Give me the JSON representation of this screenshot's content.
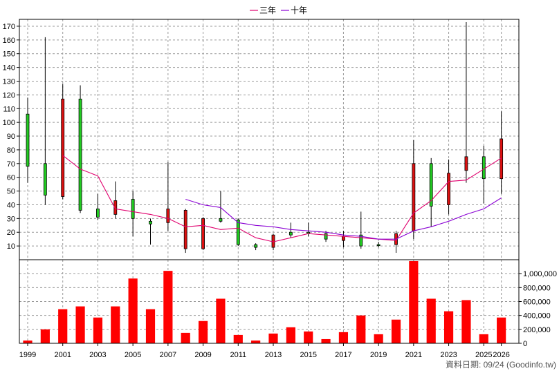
{
  "legend": [
    {
      "label": "三年",
      "color": "#e0006e"
    },
    {
      "label": "十年",
      "color": "#8a00d4"
    }
  ],
  "footer": "資料日期: 09/24  (Goodinfo.tw)",
  "colors": {
    "up": "#22cc22",
    "down": "#dd1111",
    "volume": "#ff0000",
    "wick": "#000000",
    "grid": "#999999"
  },
  "chart_data": [
    {
      "type": "candlestick",
      "title": "",
      "ylim": [
        0,
        175
      ],
      "y_ticks": [
        10,
        20,
        30,
        40,
        50,
        60,
        70,
        80,
        90,
        100,
        110,
        120,
        130,
        140,
        150,
        160,
        170
      ],
      "x": [
        "1999",
        "2000",
        "2001",
        "2002",
        "2003",
        "2004",
        "2005",
        "2006",
        "2007",
        "2008",
        "2009",
        "2010",
        "2011",
        "2012",
        "2013",
        "2014",
        "2015",
        "2016",
        "2017",
        "2018",
        "2019",
        "2020",
        "2021",
        "2022",
        "2023",
        "2024",
        "2025",
        "2026"
      ],
      "x_tick_labels": [
        "1999",
        "2001",
        "2003",
        "2005",
        "2007",
        "2009",
        "2011",
        "2013",
        "2015",
        "2017",
        "2019",
        "2021",
        "2023",
        "2025",
        "2026"
      ],
      "candles": [
        {
          "open": 68,
          "high": 118,
          "low": 56,
          "close": 106
        },
        {
          "open": 47,
          "high": 162,
          "low": 40,
          "close": 70
        },
        {
          "open": 117,
          "high": 128,
          "low": 44,
          "close": 46
        },
        {
          "open": 36,
          "high": 127,
          "low": 34,
          "close": 117
        },
        {
          "open": 31,
          "high": 48,
          "low": 29,
          "close": 37
        },
        {
          "open": 43,
          "high": 57,
          "low": 30,
          "close": 33
        },
        {
          "open": 30,
          "high": 50,
          "low": 17,
          "close": 44
        },
        {
          "open": 26,
          "high": 30,
          "low": 11,
          "close": 28
        },
        {
          "open": 37,
          "high": 71,
          "low": 21,
          "close": 27
        },
        {
          "open": 36,
          "high": 37,
          "low": 5,
          "close": 8
        },
        {
          "open": 30,
          "high": 31,
          "low": 7,
          "close": 8
        },
        {
          "open": 28,
          "high": 50,
          "low": 27,
          "close": 30
        },
        {
          "open": 11,
          "high": 30,
          "low": 10,
          "close": 29
        },
        {
          "open": 9,
          "high": 12,
          "low": 7,
          "close": 11
        },
        {
          "open": 18,
          "high": 19,
          "low": 7,
          "close": 9
        },
        {
          "open": 18,
          "high": 27,
          "low": 16,
          "close": 20
        },
        {
          "open": 19,
          "high": 27,
          "low": 17,
          "close": 20
        },
        {
          "open": 15,
          "high": 21,
          "low": 13,
          "close": 19
        },
        {
          "open": 17,
          "high": 21,
          "low": 9,
          "close": 14
        },
        {
          "open": 10,
          "high": 35,
          "low": 8,
          "close": 18
        },
        {
          "open": 11,
          "high": 13,
          "low": 9,
          "close": 11
        },
        {
          "open": 19,
          "high": 21,
          "low": 5,
          "close": 11
        },
        {
          "open": 70,
          "high": 87,
          "low": 15,
          "close": 21
        },
        {
          "open": 39,
          "high": 74,
          "low": 24,
          "close": 70
        },
        {
          "open": 63,
          "high": 73,
          "low": 33,
          "close": 40
        },
        {
          "open": 75,
          "high": 173,
          "low": 56,
          "close": 65
        },
        {
          "open": 59,
          "high": 83,
          "low": 41,
          "close": 75
        },
        {
          "open": 88,
          "high": 108,
          "low": 48,
          "close": 59
        }
      ],
      "series": [
        {
          "name": "三年",
          "values": [
            null,
            null,
            76,
            66,
            61,
            37,
            35,
            33,
            30,
            24,
            25,
            22,
            23,
            16,
            13,
            16,
            19,
            18,
            17,
            16,
            15,
            14,
            34,
            43,
            57,
            58,
            66,
            74
          ]
        },
        {
          "name": "十年",
          "values": [
            null,
            null,
            null,
            null,
            null,
            null,
            null,
            null,
            null,
            44,
            40,
            38,
            27,
            25,
            24,
            22,
            21,
            20,
            18,
            17,
            15,
            15,
            21,
            24,
            28,
            33,
            37,
            45
          ]
        }
      ]
    },
    {
      "type": "bar",
      "title": "",
      "ylim": [
        0,
        1200000
      ],
      "y_tick_labels": [
        "0",
        "200,000",
        "400,000",
        "600,000",
        "800,000",
        "1,000,000"
      ],
      "y_tick_values": [
        0,
        200000,
        400000,
        600000,
        800000,
        1000000
      ],
      "x": [
        "1999",
        "2000",
        "2001",
        "2002",
        "2003",
        "2004",
        "2005",
        "2006",
        "2007",
        "2008",
        "2009",
        "2010",
        "2011",
        "2012",
        "2013",
        "2014",
        "2015",
        "2016",
        "2017",
        "2018",
        "2019",
        "2020",
        "2021",
        "2022",
        "2023",
        "2024",
        "2025",
        "2026"
      ],
      "values": [
        40000,
        200000,
        490000,
        530000,
        370000,
        530000,
        930000,
        490000,
        1040000,
        150000,
        320000,
        640000,
        120000,
        40000,
        140000,
        230000,
        170000,
        60000,
        160000,
        400000,
        130000,
        340000,
        1180000,
        640000,
        460000,
        620000,
        130000,
        370000
      ]
    }
  ]
}
